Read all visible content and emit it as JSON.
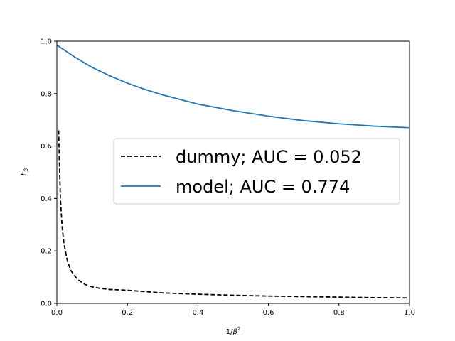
{
  "chart_data": {
    "type": "line",
    "xlabel_main": "1/",
    "xlabel_symbol": "β",
    "xlabel_sup": "2",
    "ylabel_main": "F",
    "ylabel_sub": "β",
    "xlim": [
      0,
      1
    ],
    "ylim": [
      0,
      1
    ],
    "xticks": [
      0,
      0.2,
      0.4,
      0.6,
      0.8,
      1
    ],
    "xtick_labels": [
      "0.0",
      "0.2",
      "0.4",
      "0.6",
      "0.8",
      "1.0"
    ],
    "yticks": [
      0,
      0.2,
      0.4,
      0.6,
      0.8,
      1
    ],
    "ytick_labels": [
      "0.0",
      "0.2",
      "0.4",
      "0.6",
      "0.8",
      "1.0"
    ],
    "grid": false,
    "legend_position": "center-right",
    "series": [
      {
        "name": "dummy; AUC = 0.052",
        "style": "dashed",
        "color": "#000000",
        "x": [
          0.005,
          0.01,
          0.015,
          0.02,
          0.03,
          0.04,
          0.05,
          0.06,
          0.08,
          0.1,
          0.12,
          0.15,
          0.2,
          0.25,
          0.3,
          0.4,
          0.5,
          0.6,
          0.7,
          0.8,
          0.9,
          1.0
        ],
        "y": [
          0.66,
          0.4,
          0.29,
          0.23,
          0.16,
          0.125,
          0.105,
          0.09,
          0.072,
          0.063,
          0.058,
          0.053,
          0.05,
          0.045,
          0.04,
          0.035,
          0.031,
          0.028,
          0.026,
          0.024,
          0.022,
          0.021
        ]
      },
      {
        "name": "model; AUC = 0.774",
        "style": "solid",
        "color": "#1f77b4",
        "x": [
          0,
          0.05,
          0.1,
          0.15,
          0.2,
          0.25,
          0.3,
          0.4,
          0.5,
          0.6,
          0.7,
          0.8,
          0.9,
          1.0
        ],
        "y": [
          0.985,
          0.94,
          0.9,
          0.868,
          0.84,
          0.816,
          0.795,
          0.76,
          0.735,
          0.714,
          0.697,
          0.685,
          0.676,
          0.67
        ]
      }
    ]
  }
}
